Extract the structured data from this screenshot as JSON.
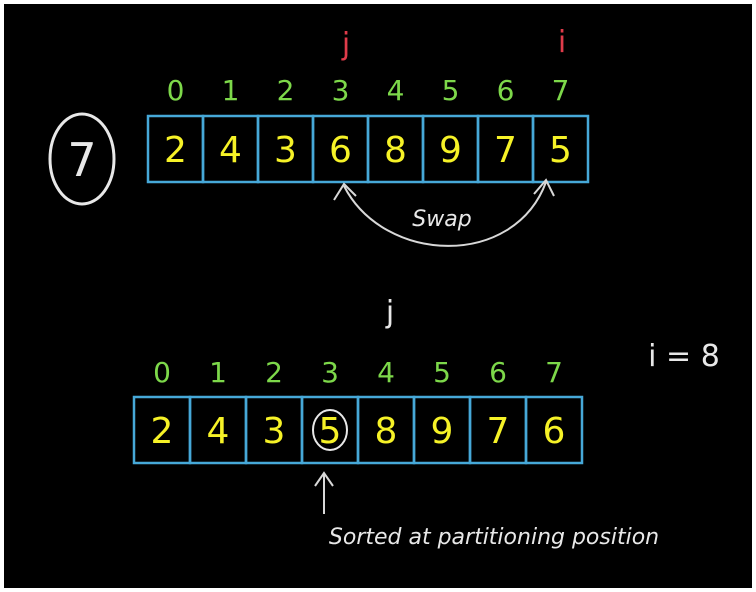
{
  "step": {
    "number": "7"
  },
  "top_array": {
    "indices": [
      "0",
      "1",
      "2",
      "3",
      "4",
      "5",
      "6",
      "7"
    ],
    "values": [
      "2",
      "4",
      "3",
      "6",
      "8",
      "9",
      "7",
      "5"
    ],
    "pointer_j_label": "j",
    "pointer_j_index": 3,
    "pointer_i_label": "i",
    "pointer_i_index": 7,
    "swap_label": "Swap"
  },
  "bottom_array": {
    "indices": [
      "0",
      "1",
      "2",
      "3",
      "4",
      "5",
      "6",
      "7"
    ],
    "values": [
      "2",
      "4",
      "3",
      "5",
      "8",
      "9",
      "7",
      "6"
    ],
    "pointer_j_label": "j",
    "pointer_j_index": 4,
    "circled_index": 3,
    "i_equals_label": "i = 8",
    "note": "Sorted at partitioning position"
  }
}
